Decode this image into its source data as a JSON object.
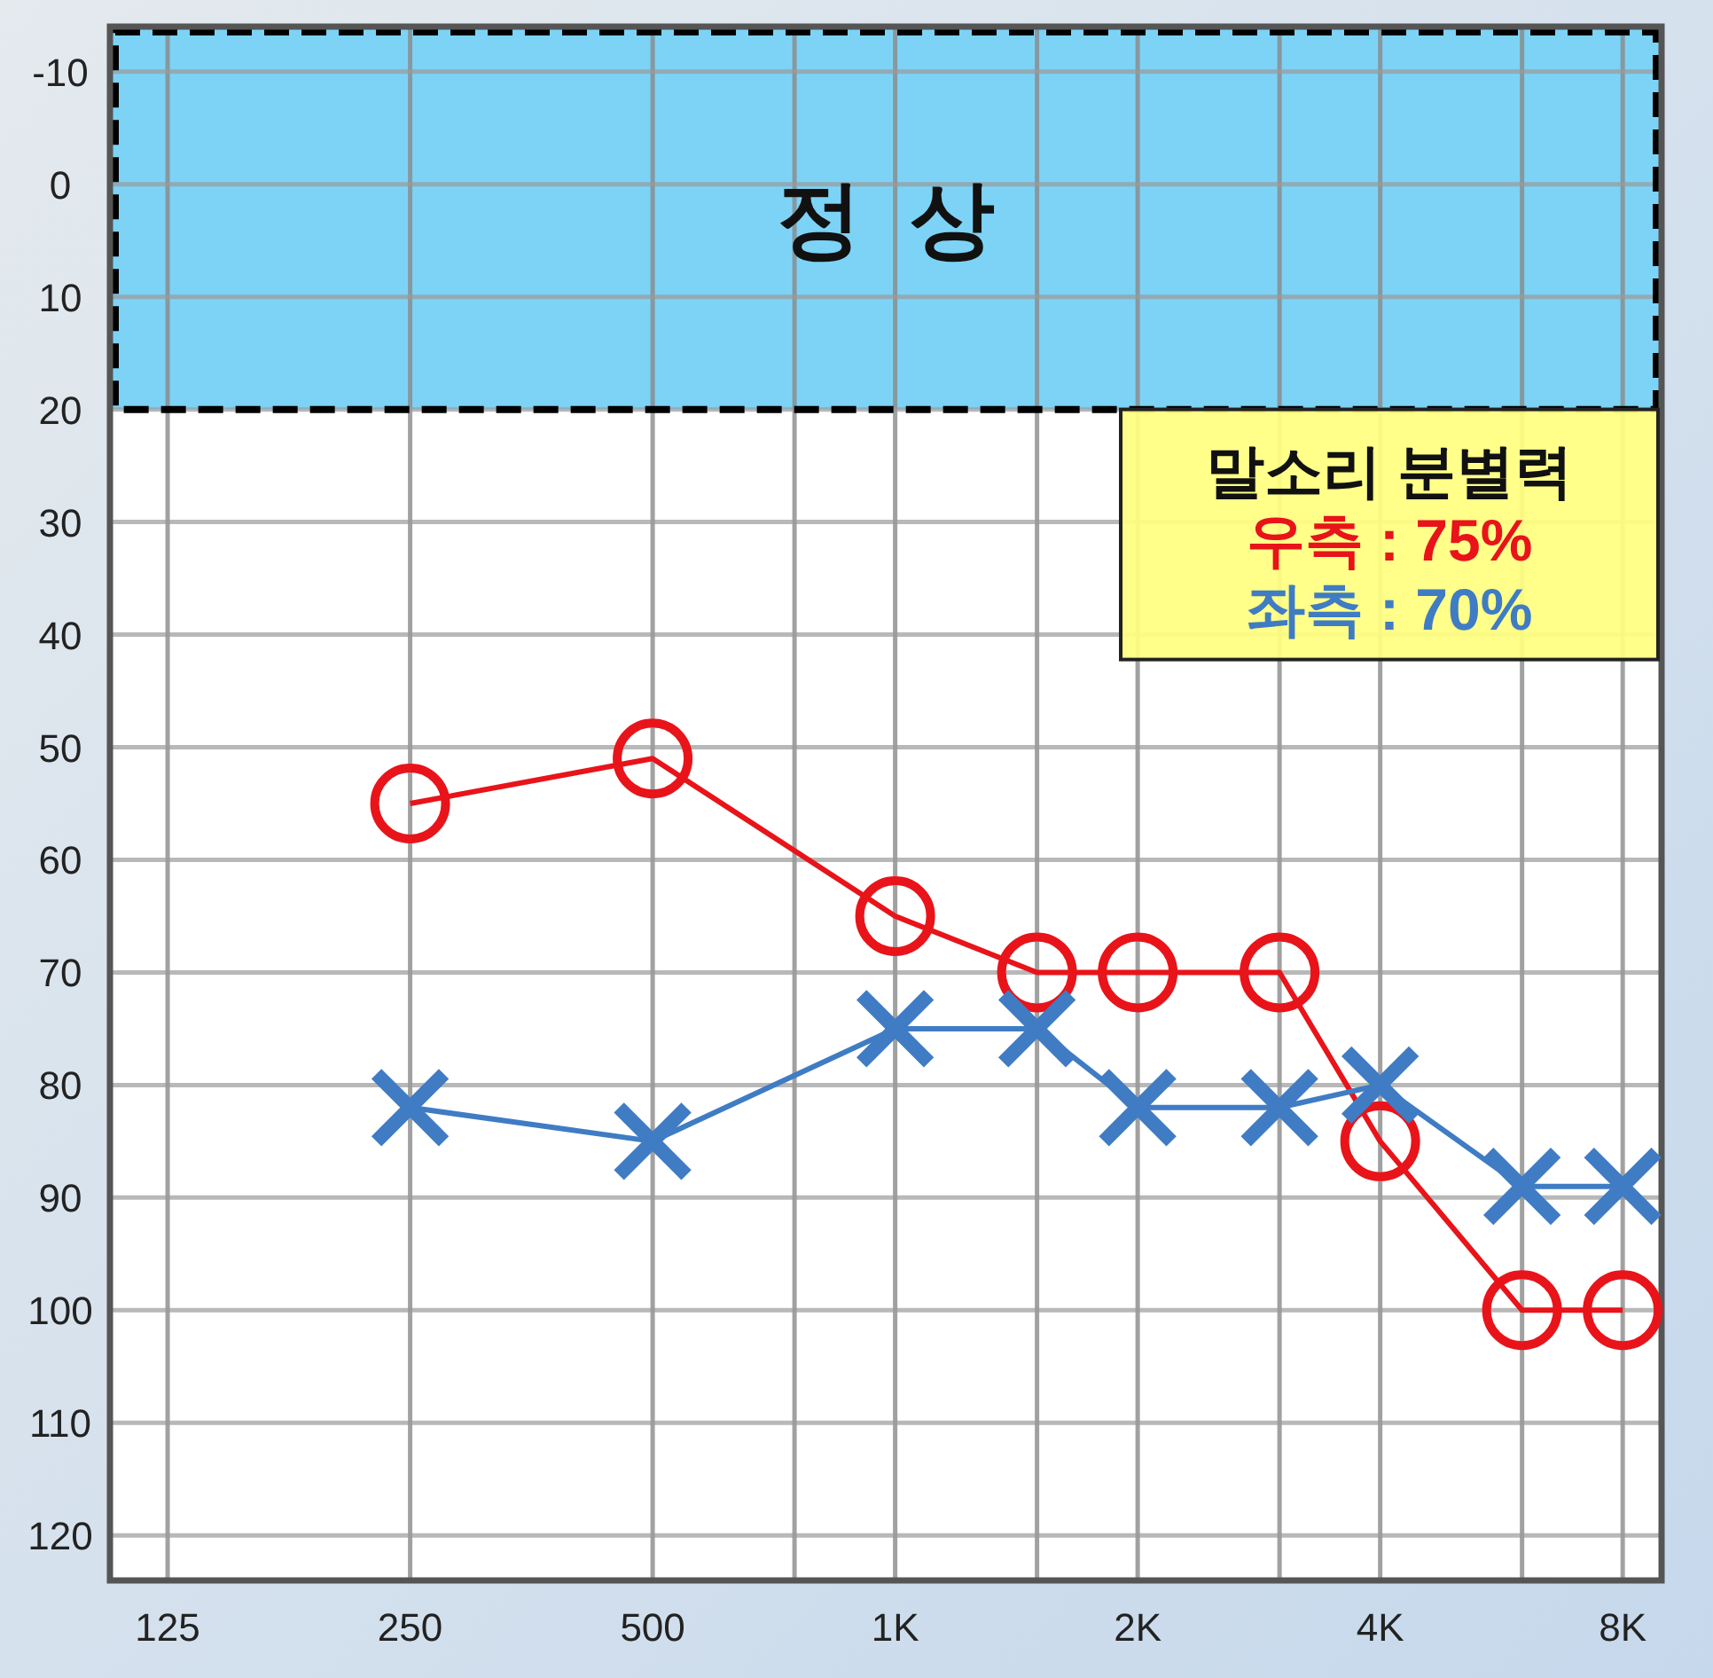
{
  "chart_data": {
    "type": "line",
    "x": [
      250,
      500,
      1000,
      1500,
      2000,
      3000,
      4000,
      6000,
      8000
    ],
    "series": [
      {
        "color": "#e8141a",
        "marker": "circle",
        "values": [
          55,
          51,
          65,
          70,
          70,
          70,
          85,
          100,
          100
        ]
      },
      {
        "color": "#3f7cc4",
        "marker": "cross",
        "values": [
          82,
          85,
          75,
          75,
          82,
          82,
          80,
          89,
          89
        ]
      }
    ],
    "log": "x",
    "xlim": [
      106,
      8940
    ],
    "xticks": [
      125,
      250,
      500,
      {
        "value": 750,
        "label": null
      },
      {
        "value": 1000,
        "label": "1K"
      },
      {
        "value": 1500,
        "label": null
      },
      {
        "value": 2000,
        "label": "2K"
      },
      {
        "value": 3000,
        "label": null
      },
      {
        "value": 4000,
        "label": "4K"
      },
      {
        "value": 6000,
        "label": null
      },
      {
        "value": 8000,
        "label": "8K"
      }
    ],
    "ylim": [
      124,
      -14
    ],
    "yticks": [
      -10,
      0,
      10,
      20,
      30,
      40,
      50,
      60,
      70,
      80,
      90,
      100,
      110,
      120
    ],
    "grid": true,
    "line_style": "solid",
    "bands": [
      {
        "axis": "y",
        "from": -14,
        "to": 20,
        "label": "정  상",
        "color": "#7dd3f5"
      }
    ],
    "annotations": [
      "말소리 분별력",
      "우측 : 75%",
      "좌측 : 70%"
    ]
  }
}
